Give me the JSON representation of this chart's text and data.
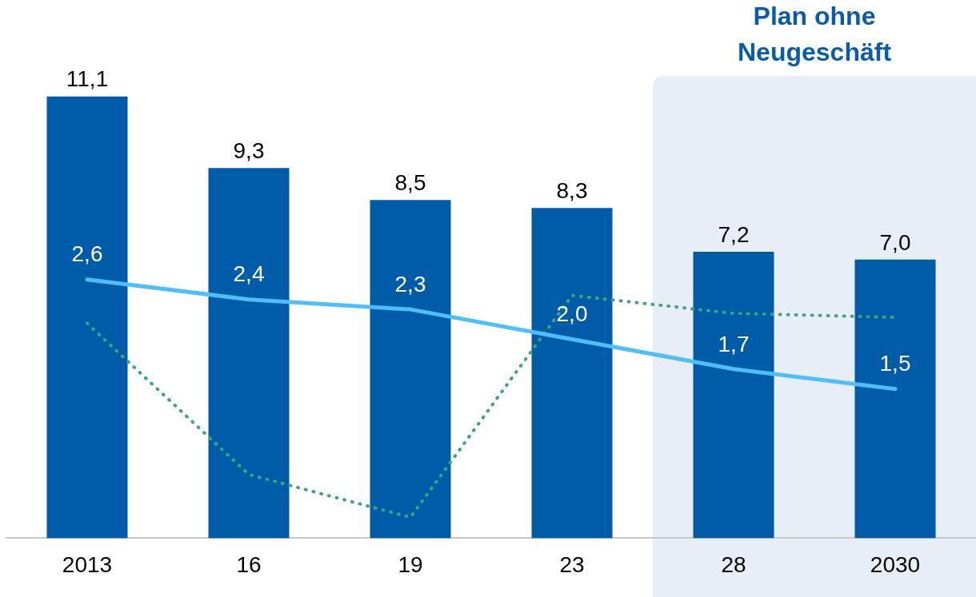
{
  "chart_data": {
    "type": "bar",
    "categories": [
      "2013",
      "16",
      "19",
      "23",
      "28",
      "2030"
    ],
    "tick_labels": "x",
    "grid": false,
    "legend": false,
    "marker": "none",
    "series": [
      {
        "color": "#005ca9",
        "values": [
          11.1,
          9.3,
          8.5,
          8.3,
          7.2,
          7.0
        ],
        "value_labels": [
          "11,1",
          "9,3",
          "8,5",
          "8,3",
          "7,2",
          "7,0"
        ]
      },
      {
        "type": "line",
        "axis": "y2",
        "color": "#4dbfff",
        "values": [
          2.6,
          2.4,
          2.3,
          2.0,
          1.7,
          1.5
        ],
        "value_labels": [
          "2,6",
          "2,4",
          "2,3",
          "2,0",
          "1,7",
          "1,5"
        ]
      },
      {
        "type": "line",
        "axis": "y2",
        "color": "#3fa37e",
        "line_style": "dotted",
        "values": [
          2.16,
          0.64,
          0.21,
          2.44,
          2.26,
          2.22
        ]
      }
    ],
    "bands": [
      {
        "axis": "x",
        "from": "28",
        "to": "2030",
        "label": "Plan ohne Neugeschäft",
        "color": "#e8eef6"
      }
    ]
  }
}
